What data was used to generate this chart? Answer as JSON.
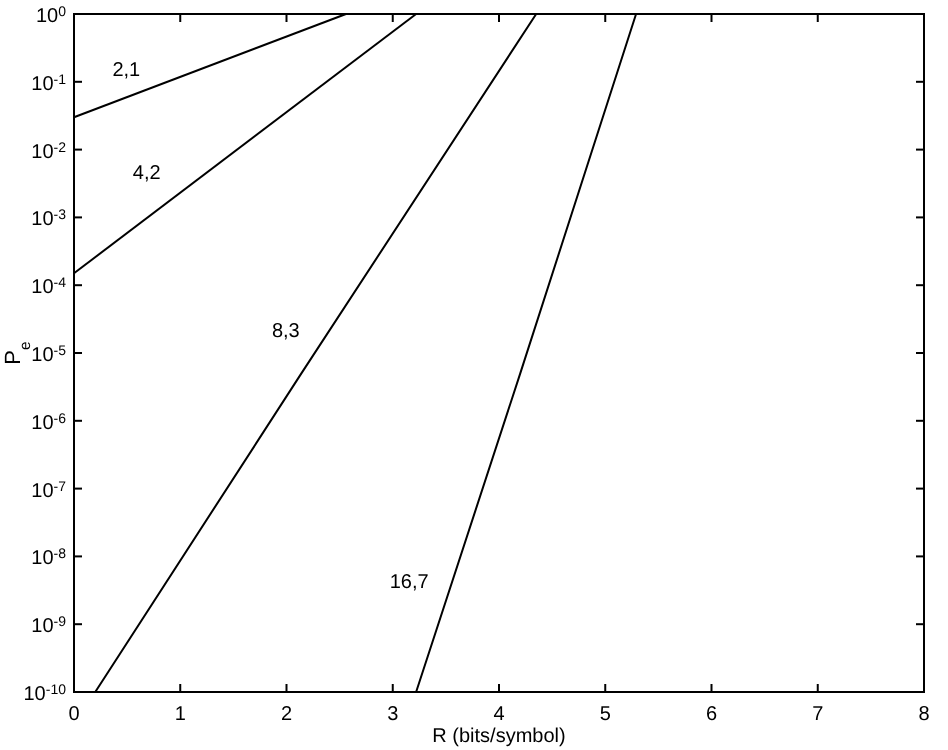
{
  "chart_data": {
    "type": "line",
    "xlabel": "R (bits/symbol)",
    "ylabel": "P$_{e}$",
    "log": "y",
    "xlim": [
      0,
      8
    ],
    "ylim": [
      1e-10,
      1
    ],
    "xticks": [
      0,
      1,
      2,
      3,
      4,
      5,
      6,
      7,
      8
    ],
    "yticks": [
      {
        "value": 1e-10,
        "label": "10$^{-10}$"
      },
      {
        "value": 1e-09,
        "label": "10$^{-9}$"
      },
      {
        "value": 1e-08,
        "label": "10$^{-8}$"
      },
      {
        "value": 1e-07,
        "label": "10$^{-7}$"
      },
      {
        "value": 1e-06,
        "label": "10$^{-6}$"
      },
      {
        "value": 1e-05,
        "label": "10$^{-5}$"
      },
      {
        "value": 0.0001,
        "label": "10$^{-4}$"
      },
      {
        "value": 0.001,
        "label": "10$^{-3}$"
      },
      {
        "value": 0.01,
        "label": "10$^{-2}$"
      },
      {
        "value": 0.1,
        "label": "10$^{-1}$"
      },
      {
        "value": 1,
        "label": "10$^{0}$"
      }
    ],
    "grid": false,
    "marker": "none",
    "line_style": "solid",
    "series": [
      {
        "name": "2,1",
        "color": "#000000",
        "x": [
          0,
          2.56
        ],
        "values": [
          0.03,
          1
        ]
      },
      {
        "name": "4,2",
        "color": "#000000",
        "x": [
          0,
          3.22
        ],
        "values": [
          0.00015,
          1
        ]
      },
      {
        "name": "8,3",
        "color": "#000000",
        "x": [
          0.2,
          2.14,
          4.35
        ],
        "values": [
          1e-10,
          5e-06,
          1
        ]
      },
      {
        "name": "16,7",
        "color": "#000000",
        "x": [
          3.22,
          4.2,
          5.29
        ],
        "values": [
          1e-10,
          5e-06,
          1
        ]
      }
    ]
  }
}
